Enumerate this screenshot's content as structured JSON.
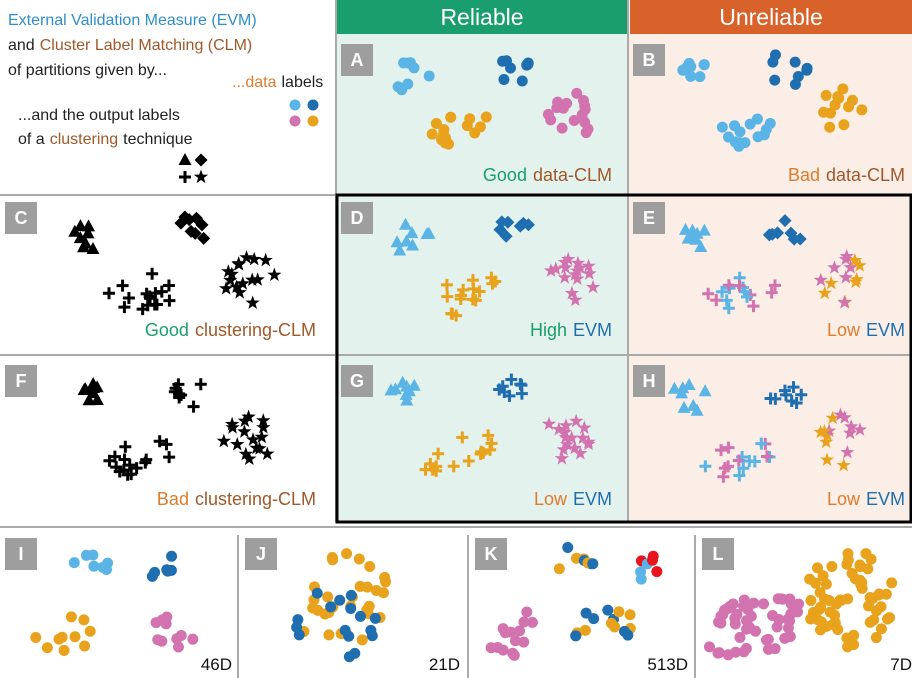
{
  "intro": {
    "evm": "External Validation Measure (EVM)",
    "and": "and",
    "clm": "Cluster Label Matching (CLM)",
    "partitions": "of partitions given by...",
    "data_prefix": "...data",
    "data_suffix": "labels",
    "output": "...and the output labels",
    "of_a": "of a",
    "clustering": "clustering",
    "technique": "technique"
  },
  "columns": [
    "Reliable",
    "Unreliable"
  ],
  "panels": [
    {
      "letter": "A",
      "caption": [
        "Good",
        "data-CLM"
      ]
    },
    {
      "letter": "B",
      "caption": [
        "Bad",
        "data-CLM"
      ]
    },
    {
      "letter": "C",
      "caption": [
        "Good",
        "clustering-CLM"
      ]
    },
    {
      "letter": "D",
      "caption": [
        "High",
        "EVM"
      ]
    },
    {
      "letter": "E",
      "caption": [
        "Low",
        "EVM"
      ]
    },
    {
      "letter": "F",
      "caption": [
        "Bad",
        "clustering-CLM"
      ]
    },
    {
      "letter": "G",
      "caption": [
        "Low",
        "EVM"
      ]
    },
    {
      "letter": "H",
      "caption": [
        "Low",
        "EVM"
      ]
    },
    {
      "letter": "I",
      "dimension": "46D"
    },
    {
      "letter": "J",
      "dimension": "21D"
    },
    {
      "letter": "K",
      "dimension": "513D"
    },
    {
      "letter": "L",
      "dimension": "7D"
    }
  ]
}
